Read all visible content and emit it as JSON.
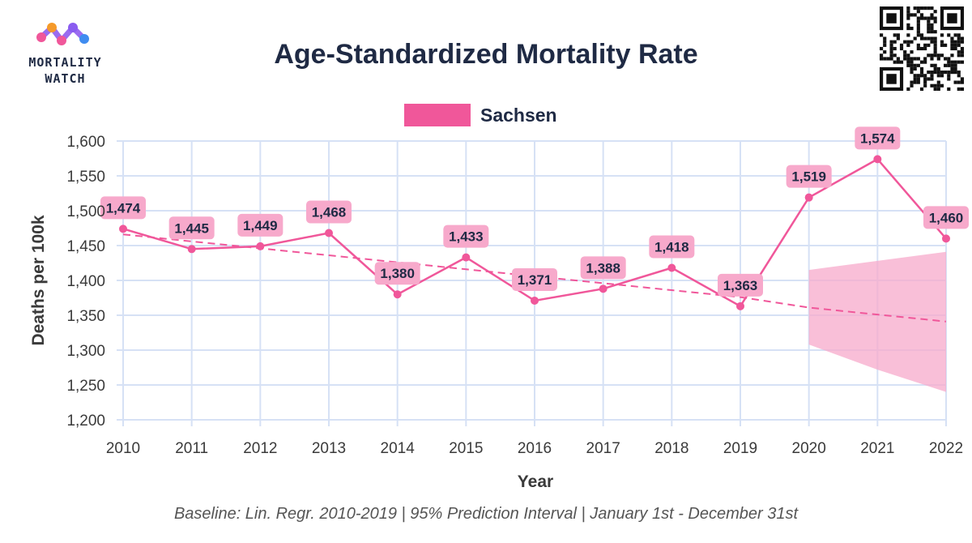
{
  "logo": {
    "line1": "MORTALITY",
    "line2": "WATCH"
  },
  "chart_data": {
    "type": "line",
    "title": "Age-Standardized Mortality Rate",
    "xlabel": "Year",
    "ylabel": "Deaths per 100k",
    "caption": "Baseline: Lin. Regr. 2010-2019 | 95% Prediction Interval | January 1st - December 31st",
    "legend": {
      "position": "top-center",
      "entries": [
        "Sachsen"
      ]
    },
    "grid": true,
    "ylim": [
      1200,
      1600
    ],
    "yticks": [
      "1,200",
      "1,250",
      "1,300",
      "1,350",
      "1,400",
      "1,450",
      "1,500",
      "1,550",
      "1,600"
    ],
    "x": [
      "2010",
      "2011",
      "2012",
      "2013",
      "2014",
      "2015",
      "2016",
      "2017",
      "2018",
      "2019",
      "2020",
      "2021",
      "2022"
    ],
    "series": [
      {
        "name": "Sachsen",
        "color": "#f0579a",
        "values": [
          1474,
          1445,
          1449,
          1468,
          1380,
          1433,
          1371,
          1388,
          1418,
          1363,
          1519,
          1574,
          1460
        ],
        "labels": [
          "1,474",
          "1,445",
          "1,449",
          "1,468",
          "1,380",
          "1,433",
          "1,371",
          "1,388",
          "1,418",
          "1,363",
          "1,519",
          "1,574",
          "1,460"
        ]
      }
    ],
    "baseline": {
      "color": "#f0579a",
      "x": [
        "2010",
        "2011",
        "2012",
        "2013",
        "2014",
        "2015",
        "2016",
        "2017",
        "2018",
        "2019",
        "2020",
        "2021",
        "2022"
      ],
      "values": [
        1466,
        1456,
        1446,
        1436,
        1426,
        1416,
        1406,
        1396,
        1386,
        1376,
        1361,
        1351,
        1341
      ]
    },
    "prediction_interval": {
      "color": "#f7a9cb",
      "x": [
        "2020",
        "2021",
        "2022"
      ],
      "lower": [
        1308,
        1272,
        1240
      ],
      "upper": [
        1415,
        1428,
        1441
      ]
    }
  }
}
